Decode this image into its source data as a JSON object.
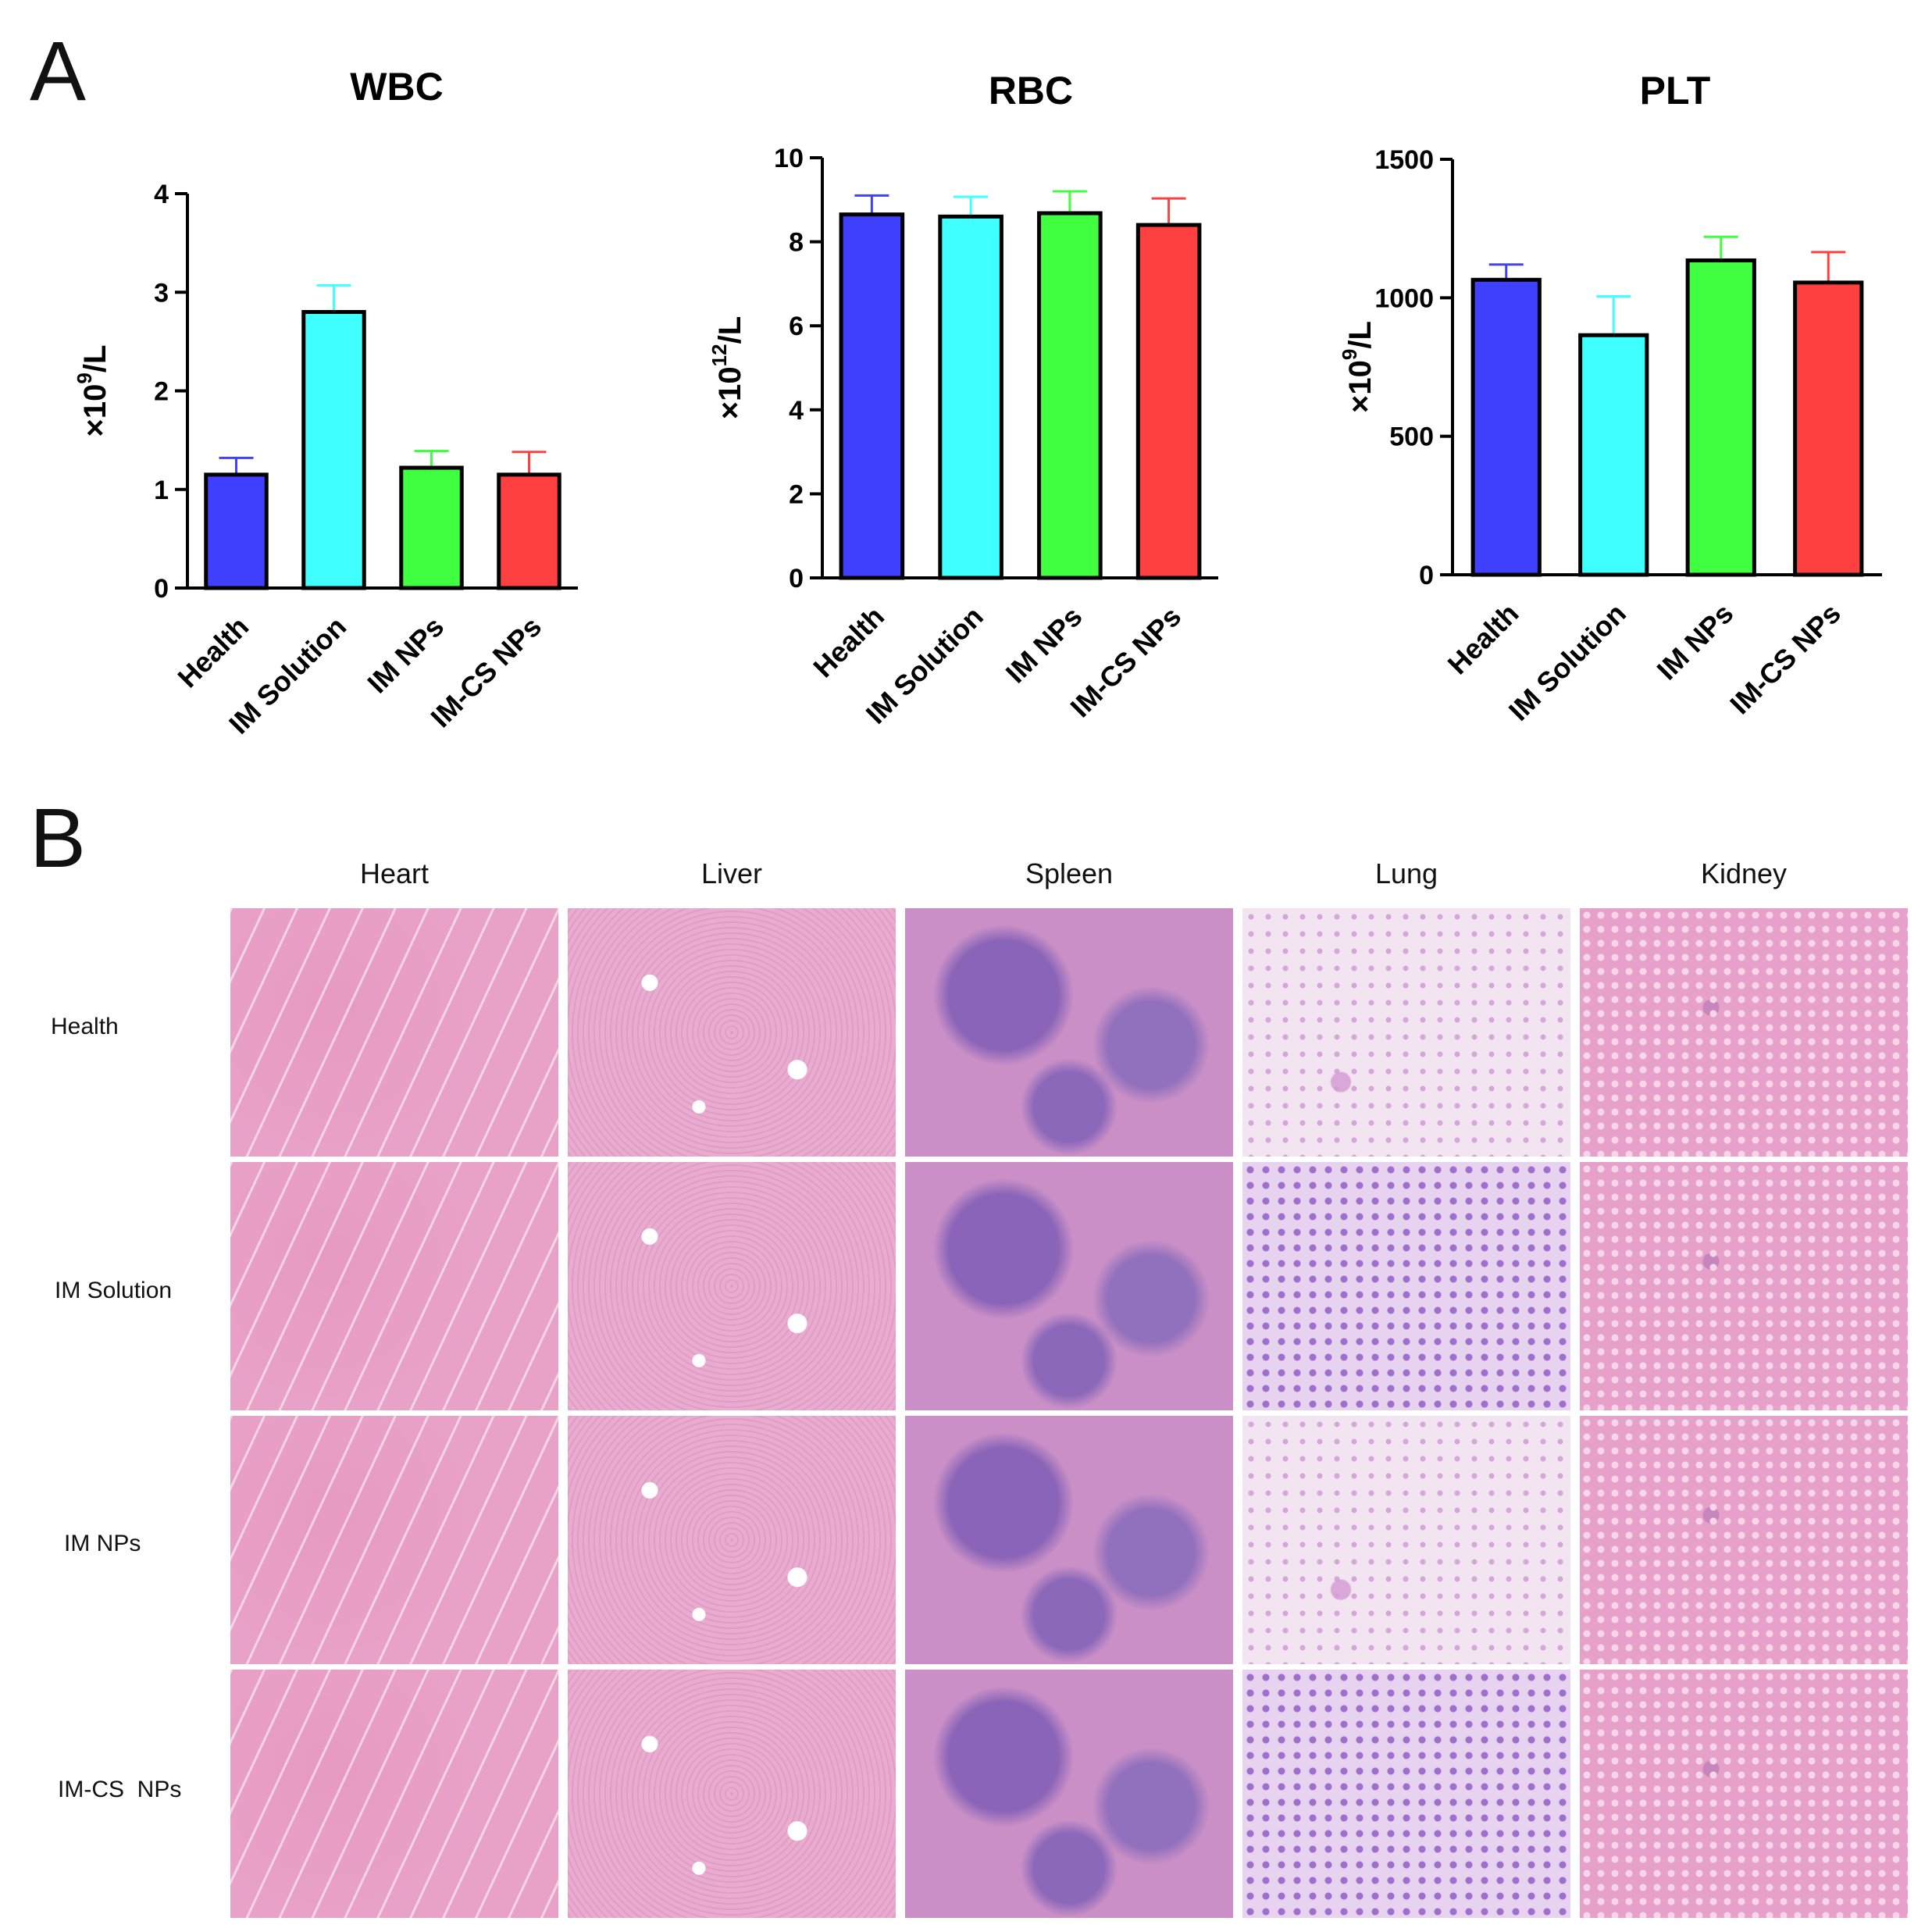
{
  "panel_a_label": "A",
  "panel_b_label": "B",
  "chart_data": [
    {
      "type": "bar",
      "title": "WBC",
      "ylabel_prefix": "×10",
      "ylabel_exp": "9",
      "ylabel_suffix": "/L",
      "categories": [
        "Health",
        "IM Solution",
        "IM NPs",
        "IM-CS NPs"
      ],
      "values": [
        1.15,
        2.8,
        1.22,
        1.15
      ],
      "errors": [
        0.17,
        0.27,
        0.17,
        0.23
      ],
      "colors": [
        "#4040ff",
        "#40ffff",
        "#40ff40",
        "#ff4040"
      ],
      "ylim": [
        0,
        4
      ],
      "yticks": [
        0,
        1,
        2,
        3,
        4
      ]
    },
    {
      "type": "bar",
      "title": "RBC",
      "ylabel_prefix": "×10",
      "ylabel_exp": "12",
      "ylabel_suffix": "/L",
      "categories": [
        "Health",
        "IM Solution",
        "IM NPs",
        "IM-CS NPs"
      ],
      "values": [
        8.65,
        8.6,
        8.68,
        8.4
      ],
      "errors": [
        0.45,
        0.47,
        0.52,
        0.63
      ],
      "colors": [
        "#4040ff",
        "#40ffff",
        "#40ff40",
        "#ff4040"
      ],
      "ylim": [
        0,
        10
      ],
      "yticks": [
        0,
        2,
        4,
        6,
        8,
        10
      ]
    },
    {
      "type": "bar",
      "title": "PLT",
      "ylabel_prefix": "×10",
      "ylabel_exp": "9",
      "ylabel_suffix": "/L",
      "categories": [
        "Health",
        "IM Solution",
        "IM NPs",
        "IM-CS NPs"
      ],
      "values": [
        1065,
        865,
        1135,
        1055
      ],
      "errors": [
        55,
        140,
        85,
        110
      ],
      "colors": [
        "#4040ff",
        "#40ffff",
        "#40ff40",
        "#ff4040"
      ],
      "ylim": [
        0,
        1500
      ],
      "yticks": [
        0,
        500,
        1000,
        1500
      ]
    }
  ],
  "histology": {
    "columns": [
      "Heart",
      "Liver",
      "Spleen",
      "Lung",
      "Kidney"
    ],
    "rows": [
      "Health",
      "IM Solution",
      "IM NPs",
      "IM-CS  NPs"
    ]
  }
}
